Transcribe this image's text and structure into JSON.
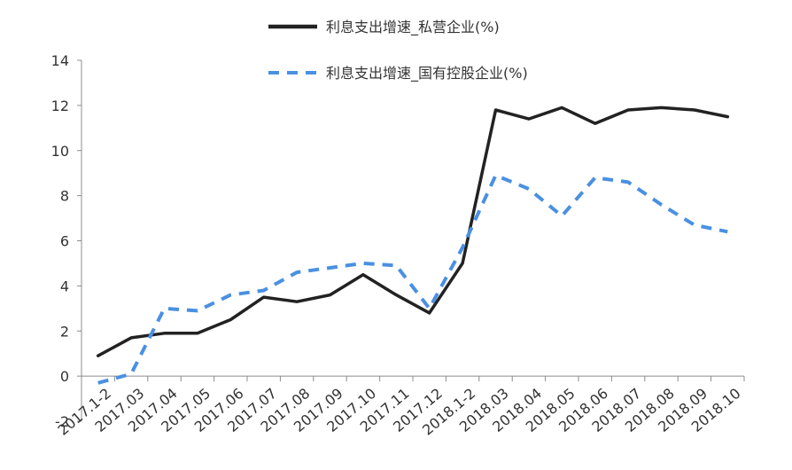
{
  "chart_data": {
    "type": "line",
    "categories": [
      "2017.1-2",
      "2017.03",
      "2017.04",
      "2017.05",
      "2017.06",
      "2017.07",
      "2017.08",
      "2017.09",
      "2017.10",
      "2017.11",
      "2017.12",
      "2018.1-2",
      "2018.03",
      "2018.04",
      "2018.05",
      "2018.06",
      "2018.07",
      "2018.08",
      "2018.09",
      "2018.10"
    ],
    "series": [
      {
        "name": "利息支出增速_私营企业(%)",
        "color": "#222222",
        "style": "solid",
        "values": [
          0.9,
          1.7,
          1.9,
          1.9,
          2.5,
          3.5,
          3.3,
          3.6,
          4.5,
          3.6,
          2.8,
          5.0,
          11.8,
          11.4,
          11.9,
          11.2,
          11.8,
          11.9,
          11.8,
          11.5
        ]
      },
      {
        "name": "利息支出增速_国有控股企业(%)",
        "color": "#4a90e2",
        "style": "dashed",
        "values": [
          -0.3,
          0.1,
          3.0,
          2.9,
          3.6,
          3.8,
          4.6,
          4.8,
          5.0,
          4.9,
          3.0,
          5.7,
          8.9,
          8.3,
          7.1,
          8.8,
          8.6,
          7.6,
          6.7,
          6.4
        ]
      }
    ],
    "yticks": [
      "-2",
      "0",
      "2",
      "4",
      "6",
      "8",
      "10",
      "12",
      "14"
    ],
    "ylim": [
      -2,
      14
    ],
    "grid": false,
    "legend_position": "top"
  }
}
